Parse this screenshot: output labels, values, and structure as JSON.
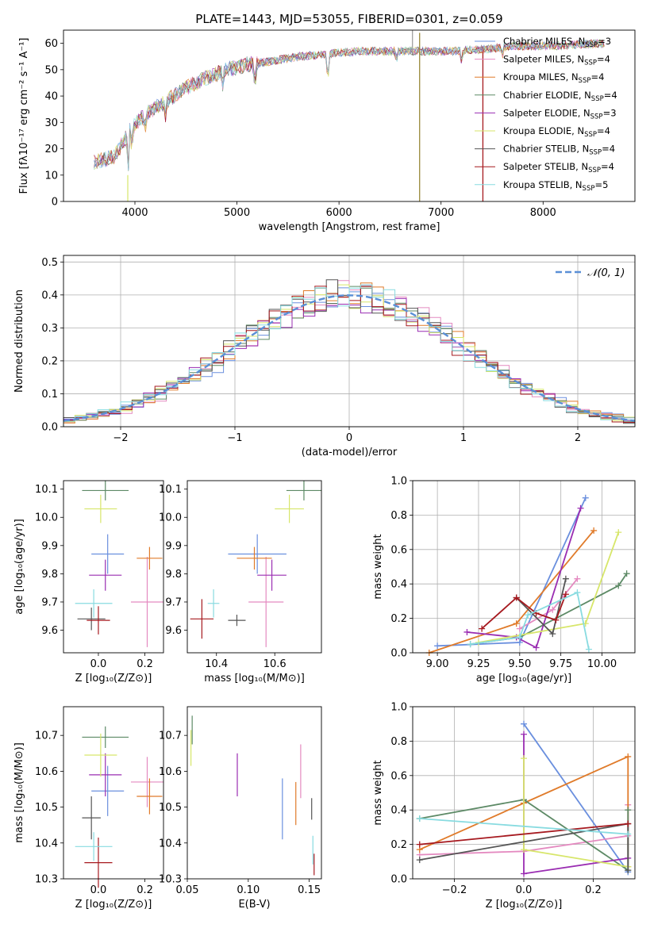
{
  "figure_title": "PLATE=1443, MJD=53055, FIBERID=0301, z=0.059",
  "colors": [
    "#6a8fde",
    "#e48ac0",
    "#e07b2a",
    "#5d8a66",
    "#9a2db2",
    "#d7e66a",
    "#555555",
    "#a6191f",
    "#88dbe0"
  ],
  "chart_data": [
    {
      "type": "line",
      "name": "spectrum",
      "xlabel": "wavelength [Angstrom, rest frame]",
      "ylabel": "Flux [fλ10⁻¹⁷ erg cm⁻² s⁻¹ A⁻¹]",
      "xlim": [
        3300,
        8900
      ],
      "ylim": [
        0,
        65
      ],
      "xticks": [
        "4000",
        "5000",
        "6000",
        "7000",
        "8000"
      ],
      "yticks": [
        "0",
        "10",
        "20",
        "30",
        "40",
        "50",
        "60"
      ],
      "grid": false,
      "legend_position": "top-right",
      "series": [
        {
          "name": "Chabrier MILES, N",
          "suffix": "=3"
        },
        {
          "name": "Salpeter MILES, N",
          "suffix": "=4"
        },
        {
          "name": "Kroupa MILES, N",
          "suffix": "=4"
        },
        {
          "name": "Chabrier ELODIE, N",
          "suffix": "=4"
        },
        {
          "name": "Salpeter ELODIE, N",
          "suffix": "=3"
        },
        {
          "name": "Kroupa ELODIE, N",
          "suffix": "=4"
        },
        {
          "name": "Chabrier STELIB, N",
          "suffix": "=4"
        },
        {
          "name": "Salpeter STELIB, N",
          "suffix": "=4"
        },
        {
          "name": "Kroupa STELIB, N",
          "suffix": "=5"
        }
      ],
      "continuum": [
        [
          3600,
          15
        ],
        [
          3800,
          17
        ],
        [
          3950,
          27
        ],
        [
          4100,
          33
        ],
        [
          4300,
          38
        ],
        [
          4500,
          43
        ],
        [
          4700,
          47
        ],
        [
          4900,
          50
        ],
        [
          5100,
          52
        ],
        [
          5300,
          53
        ],
        [
          5600,
          55
        ],
        [
          5900,
          56
        ],
        [
          6200,
          57
        ],
        [
          6500,
          57
        ],
        [
          6800,
          57
        ],
        [
          7100,
          57
        ],
        [
          7300,
          57.5
        ],
        [
          7500,
          58
        ],
        [
          7700,
          59
        ],
        [
          8100,
          59
        ],
        [
          8300,
          59.5
        ],
        [
          8600,
          60
        ]
      ]
    },
    {
      "type": "step",
      "name": "residual-histogram",
      "xlabel": "(data-model)/error",
      "ylabel": "Normed distribution",
      "xlim": [
        -2.5,
        2.5
      ],
      "ylim": [
        0,
        0.52
      ],
      "xticks": [
        "−2",
        "−1",
        "0",
        "1",
        "2"
      ],
      "yticks": [
        "0.0",
        "0.1",
        "0.2",
        "0.3",
        "0.4",
        "0.5"
      ],
      "grid": true,
      "legend": "𝒩(0, 1)",
      "legend_position": "top-right"
    },
    {
      "type": "scatter",
      "name": "age-vs-Z",
      "xlabel": "Z [log₁₀(Z/Z⊙)]",
      "ylabel": "age  [log₁₀(age/yr)]",
      "xlim": [
        -0.15,
        0.28
      ],
      "ylim": [
        9.52,
        10.13
      ],
      "xticks": [
        "0.0",
        "0.2"
      ],
      "xtick_values": [
        0.0,
        0.2
      ],
      "yticks": [
        "9.6",
        "9.7",
        "9.8",
        "9.9",
        "10.0",
        "10.1"
      ],
      "ytick_values": [
        9.6,
        9.7,
        9.8,
        9.9,
        10.0,
        10.1
      ],
      "points": [
        {
          "x": 0.04,
          "y": 9.87,
          "xe": 0.07,
          "ye": 0.07
        },
        {
          "x": 0.21,
          "y": 9.7,
          "xe": 0.07,
          "ye": 0.16
        },
        {
          "x": 0.22,
          "y": 9.855,
          "xe": 0.055,
          "ye": 0.04
        },
        {
          "x": 0.03,
          "y": 10.095,
          "xe": 0.1,
          "ye": 0.035
        },
        {
          "x": 0.03,
          "y": 9.795,
          "xe": 0.07,
          "ye": 0.055
        },
        {
          "x": 0.01,
          "y": 10.03,
          "xe": 0.07,
          "ye": 0.05
        },
        {
          "x": -0.03,
          "y": 9.64,
          "xe": 0.06,
          "ye": 0.04
        },
        {
          "x": 0.0,
          "y": 9.635,
          "xe": 0.05,
          "ye": 0.05
        },
        {
          "x": -0.02,
          "y": 9.695,
          "xe": 0.08,
          "ye": 0.05
        }
      ]
    },
    {
      "type": "scatter",
      "name": "age-vs-mass",
      "xlabel": "mass [log₁₀(M/M⊙)]",
      "ylabel": "",
      "xlim": [
        10.3,
        10.76
      ],
      "ylim": [
        9.52,
        10.13
      ],
      "xticks": [
        "10.4",
        "10.6"
      ],
      "xtick_values": [
        10.4,
        10.6
      ],
      "yticks": [
        "9.6",
        "9.7",
        "9.8",
        "9.9",
        "10.0",
        "10.1"
      ],
      "ytick_values": [
        9.6,
        9.7,
        9.8,
        9.9,
        10.0,
        10.1
      ],
      "points": [
        {
          "x": 10.54,
          "y": 9.87,
          "xe": 0.1,
          "ye": 0.07
        },
        {
          "x": 10.57,
          "y": 9.7,
          "xe": 0.06,
          "ye": 0.16
        },
        {
          "x": 10.53,
          "y": 9.855,
          "xe": 0.06,
          "ye": 0.04
        },
        {
          "x": 10.7,
          "y": 10.095,
          "xe": 0.06,
          "ye": 0.035
        },
        {
          "x": 10.59,
          "y": 9.795,
          "xe": 0.05,
          "ye": 0.055
        },
        {
          "x": 10.65,
          "y": 10.03,
          "xe": 0.05,
          "ye": 0.05
        },
        {
          "x": 10.47,
          "y": 9.635,
          "xe": 0.03,
          "ye": 0.02
        },
        {
          "x": 10.35,
          "y": 9.64,
          "xe": 0.04,
          "ye": 0.07
        },
        {
          "x": 10.39,
          "y": 9.695,
          "xe": 0.02,
          "ye": 0.05
        }
      ]
    },
    {
      "type": "line",
      "name": "weight-vs-age",
      "xlabel": "age  [log₁₀(age/yr)]",
      "ylabel": "mass weight",
      "xlim": [
        8.85,
        10.2
      ],
      "ylim": [
        0,
        1
      ],
      "xticks": [
        "9.00",
        "9.25",
        "9.50",
        "9.75",
        "10.00"
      ],
      "xtick_values": [
        9.0,
        9.25,
        9.5,
        9.75,
        10.0
      ],
      "yticks": [
        "0.0",
        "0.2",
        "0.4",
        "0.6",
        "0.8",
        "1.0"
      ],
      "ytick_values": [
        0,
        0.2,
        0.4,
        0.6,
        0.8,
        1.0
      ],
      "grid": true,
      "series": [
        {
          "points": [
            [
              9.0,
              0.04
            ],
            [
              9.5,
              0.06
            ],
            [
              9.9,
              0.9
            ]
          ]
        },
        {
          "points": [
            [
              9.5,
              0.14
            ],
            [
              9.7,
              0.25
            ],
            [
              9.85,
              0.43
            ]
          ]
        },
        {
          "points": [
            [
              8.95,
              0.0
            ],
            [
              9.48,
              0.17
            ],
            [
              9.95,
              0.71
            ]
          ]
        },
        {
          "points": [
            [
              9.2,
              0.05
            ],
            [
              9.5,
              0.09
            ],
            [
              10.1,
              0.39
            ],
            [
              10.15,
              0.46
            ]
          ]
        },
        {
          "points": [
            [
              9.18,
              0.12
            ],
            [
              9.48,
              0.09
            ],
            [
              9.6,
              0.03
            ],
            [
              9.87,
              0.84
            ]
          ]
        },
        {
          "points": [
            [
              9.25,
              0.06
            ],
            [
              9.9,
              0.17
            ],
            [
              10.1,
              0.7
            ]
          ]
        },
        {
          "points": [
            [
              9.48,
              0.32
            ],
            [
              9.7,
              0.11
            ],
            [
              9.78,
              0.43
            ]
          ]
        },
        {
          "points": [
            [
              9.27,
              0.14
            ],
            [
              9.48,
              0.32
            ],
            [
              9.6,
              0.23
            ],
            [
              9.72,
              0.19
            ],
            [
              9.78,
              0.34
            ]
          ]
        },
        {
          "points": [
            [
              9.2,
              0.05
            ],
            [
              9.5,
              0.09
            ],
            [
              9.55,
              0.22
            ],
            [
              9.85,
              0.35
            ],
            [
              9.92,
              0.02
            ]
          ]
        }
      ]
    },
    {
      "type": "scatter",
      "name": "mass-vs-Z",
      "xlabel": "Z [log₁₀(Z/Z⊙)]",
      "ylabel": "mass [log₁₀(M/M⊙)]",
      "xlim": [
        -0.15,
        0.28
      ],
      "ylim": [
        10.3,
        10.78
      ],
      "xticks": [
        "0.0",
        "0.2"
      ],
      "xtick_values": [
        0.0,
        0.2
      ],
      "yticks": [
        "10.3",
        "10.4",
        "10.5",
        "10.6",
        "10.7"
      ],
      "ytick_values": [
        10.3,
        10.4,
        10.5,
        10.6,
        10.7
      ],
      "points": [
        {
          "x": 0.04,
          "y": 10.545,
          "xe": 0.07,
          "ye": 0.07
        },
        {
          "x": 0.21,
          "y": 10.57,
          "xe": 0.07,
          "ye": 0.07
        },
        {
          "x": 0.22,
          "y": 10.53,
          "xe": 0.055,
          "ye": 0.05
        },
        {
          "x": 0.03,
          "y": 10.695,
          "xe": 0.1,
          "ye": 0.03
        },
        {
          "x": 0.03,
          "y": 10.59,
          "xe": 0.07,
          "ye": 0.06
        },
        {
          "x": 0.01,
          "y": 10.645,
          "xe": 0.07,
          "ye": 0.06
        },
        {
          "x": -0.03,
          "y": 10.47,
          "xe": 0.04,
          "ye": 0.06
        },
        {
          "x": 0.0,
          "y": 10.345,
          "xe": 0.06,
          "ye": 0.07
        },
        {
          "x": -0.02,
          "y": 10.39,
          "xe": 0.08,
          "ye": 0.04
        }
      ]
    },
    {
      "type": "errorbar",
      "name": "mass-vs-EBV",
      "xlabel": "E(B-V)",
      "ylabel": "",
      "xlim": [
        0.05,
        0.16
      ],
      "ylim": [
        10.3,
        10.78
      ],
      "xticks": [
        "0.05",
        "0.10",
        "0.15"
      ],
      "xtick_values": [
        0.05,
        0.1,
        0.15
      ],
      "yticks": [
        "10.3",
        "10.4",
        "10.5",
        "10.6",
        "10.7"
      ],
      "ytick_values": [
        10.3,
        10.4,
        10.5,
        10.6,
        10.7
      ],
      "points": [
        {
          "x": 0.128,
          "y": 10.495,
          "ye": 0.085
        },
        {
          "x": 0.143,
          "y": 10.6,
          "ye": 0.075
        },
        {
          "x": 0.139,
          "y": 10.51,
          "ye": 0.06
        },
        {
          "x": 0.054,
          "y": 10.715,
          "ye": 0.04
        },
        {
          "x": 0.091,
          "y": 10.59,
          "ye": 0.06
        },
        {
          "x": 0.053,
          "y": 10.665,
          "ye": 0.05
        },
        {
          "x": 0.152,
          "y": 10.495,
          "ye": 0.03
        },
        {
          "x": 0.154,
          "y": 10.34,
          "ye": 0.03
        },
        {
          "x": 0.153,
          "y": 10.38,
          "ye": 0.04
        }
      ]
    },
    {
      "type": "line",
      "name": "weight-vs-Z",
      "xlabel": "Z [log₁₀(Z/Z⊙)]",
      "ylabel": "mass weight",
      "xlim": [
        -0.32,
        0.32
      ],
      "ylim": [
        0,
        1
      ],
      "xticks": [
        "−0.2",
        "0.0",
        "0.2"
      ],
      "xtick_values": [
        -0.2,
        0.0,
        0.2
      ],
      "yticks": [
        "0.0",
        "0.2",
        "0.4",
        "0.6",
        "0.8",
        "1.0"
      ],
      "ytick_values": [
        0,
        0.2,
        0.4,
        0.6,
        0.8,
        1.0
      ],
      "grid": true,
      "series": [
        {
          "points": [
            [
              0.0,
              0.9
            ],
            [
              0.3,
              0.04
            ]
          ]
        },
        {
          "points": [
            [
              -0.3,
              0.14
            ],
            [
              0.0,
              0.16
            ],
            [
              0.3,
              0.25
            ],
            [
              0.3,
              0.43
            ]
          ]
        },
        {
          "points": [
            [
              -0.3,
              0.17
            ],
            [
              0.0,
              0.44
            ],
            [
              0.3,
              0.71
            ],
            [
              0.3,
              0.07
            ]
          ]
        },
        {
          "points": [
            [
              -0.3,
              0.35
            ],
            [
              0.0,
              0.46
            ],
            [
              0.3,
              0.05
            ],
            [
              0.3,
              0.4
            ]
          ]
        },
        {
          "points": [
            [
              0.0,
              0.84
            ],
            [
              0.0,
              0.03
            ],
            [
              0.3,
              0.12
            ]
          ]
        },
        {
          "points": [
            [
              0.0,
              0.7
            ],
            [
              0.0,
              0.17
            ],
            [
              0.3,
              0.07
            ]
          ]
        },
        {
          "points": [
            [
              -0.3,
              0.11
            ],
            [
              0.3,
              0.32
            ],
            [
              0.3,
              0.05
            ]
          ]
        },
        {
          "points": [
            [
              -0.3,
              0.2
            ],
            [
              0.3,
              0.32
            ]
          ]
        },
        {
          "points": [
            [
              -0.3,
              0.35
            ],
            [
              0.3,
              0.26
            ]
          ]
        }
      ]
    }
  ]
}
